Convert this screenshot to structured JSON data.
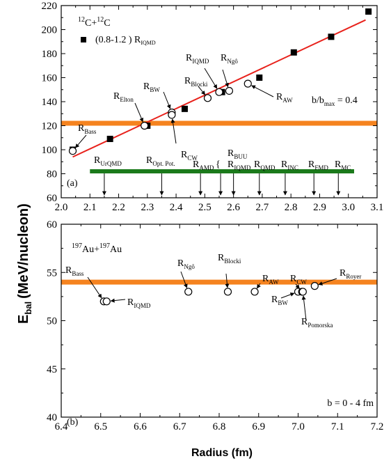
{
  "y_axis_title": "E",
  "y_axis_title_sub": "bal",
  "y_axis_title_unit": "(MeV/nucleon)",
  "x_axis_title": "Radius (fm)",
  "colors": {
    "fit_line": "#e8221c",
    "bass_band": "#f5831f",
    "pot_band": "#1b7a1b",
    "marker": "#000000"
  },
  "chart_data": [
    {
      "type": "scatter",
      "panel_tag": "(a)",
      "system": {
        "a1": "12",
        "e1": "C",
        "plus": "+",
        "a2": "12",
        "e2": "C"
      },
      "legend": {
        "label": "(0.8-1.2 ) R",
        "label_sub": "IQMD",
        "placement": "upper-left"
      },
      "impact_label": "b/b",
      "impact_label_sub": "max",
      "impact_label_value": " = 0.4",
      "xlim": [
        2.0,
        3.1
      ],
      "ylim": [
        60,
        220
      ],
      "xticks": [
        2.0,
        2.1,
        2.2,
        2.3,
        2.4,
        2.5,
        2.6,
        2.7,
        2.8,
        2.9,
        3.0,
        3.1
      ],
      "xtick_labels": [
        "2.0",
        "2.1",
        "2.2",
        "2.3",
        "2.4",
        "2.5",
        "2.6",
        "2.7",
        "2.8",
        "2.9",
        "3.0",
        "3.1"
      ],
      "yticks": [
        60,
        80,
        100,
        120,
        140,
        160,
        180,
        200,
        220
      ],
      "ytick_labels": [
        "60",
        "80",
        "100",
        "120",
        "140",
        "160",
        "180",
        "200",
        "220"
      ],
      "iqmd_squares": [
        [
          2.04,
          100
        ],
        [
          2.17,
          109
        ],
        [
          2.3,
          120
        ],
        [
          2.43,
          134
        ],
        [
          2.56,
          148
        ],
        [
          2.69,
          160
        ],
        [
          2.81,
          181
        ],
        [
          2.94,
          194
        ],
        [
          3.07,
          215
        ]
      ],
      "fit_line": [
        [
          2.04,
          94
        ],
        [
          3.06,
          208
        ]
      ],
      "bass_band_y": 122,
      "potential_band": {
        "y": 82,
        "x": [
          2.1,
          3.02
        ]
      },
      "open_circles": [
        {
          "name": "R",
          "sub": "Bass",
          "x": 2.04,
          "y": 99
        },
        {
          "name": "R",
          "sub": "Elton",
          "x": 2.29,
          "y": 120
        },
        {
          "name": "R",
          "sub": "BW",
          "x": 2.385,
          "y": 131
        },
        {
          "name": "R",
          "sub": "CW",
          "x": 2.385,
          "y": 129
        },
        {
          "name": "R",
          "sub": "Blocki",
          "x": 2.51,
          "y": 143
        },
        {
          "name": "R",
          "sub": "IQMD",
          "x": 2.55,
          "y": 148
        },
        {
          "name": "R",
          "sub": "Ngô",
          "x": 2.585,
          "y": 149
        },
        {
          "name": "R",
          "sub": "AW",
          "x": 2.65,
          "y": 155
        }
      ],
      "potential_radii": [
        {
          "name": "R",
          "sub": "UrQMD",
          "x": 2.15
        },
        {
          "name": "R",
          "sub": "Opt. Pot.",
          "x": 2.35
        },
        {
          "name": "R",
          "sub": "AMD",
          "x": 2.485
        },
        {
          "name": "R",
          "sub": "BUU",
          "x": 2.555
        },
        {
          "name": "R",
          "sub": "IQMD",
          "x": 2.6
        },
        {
          "name": "R",
          "sub": "QMD",
          "x": 2.69
        },
        {
          "name": "R",
          "sub": "INC",
          "x": 2.78
        },
        {
          "name": "R",
          "sub": "FMD",
          "x": 2.88
        },
        {
          "name": "R",
          "sub": "MC",
          "x": 2.965
        }
      ]
    },
    {
      "type": "scatter",
      "panel_tag": "(b)",
      "system": {
        "a1": "197",
        "e1": "Au",
        "plus": "+",
        "a2": "197",
        "e2": "Au"
      },
      "impact_label": "b = 0 - 4 fm",
      "xlim": [
        6.4,
        7.2
      ],
      "ylim": [
        40,
        60
      ],
      "xticks": [
        6.4,
        6.5,
        6.6,
        6.7,
        6.8,
        6.9,
        7.0,
        7.1,
        7.2
      ],
      "xtick_labels": [
        "6.4",
        "6.5",
        "6.6",
        "6.7",
        "6.8",
        "6.9",
        "7.0",
        "7.1",
        "7.2"
      ],
      "yticks": [
        40,
        45,
        50,
        55,
        60
      ],
      "ytick_labels": [
        "40",
        "45",
        "50",
        "55",
        "60"
      ],
      "bass_band_y": 54,
      "open_circles": [
        {
          "name": "R",
          "sub": "Bass",
          "x": 6.508,
          "y": 52
        },
        {
          "name": "R",
          "sub": "IQMD",
          "x": 6.515,
          "y": 52
        },
        {
          "name": "R",
          "sub": "Ngô",
          "x": 6.722,
          "y": 53
        },
        {
          "name": "R",
          "sub": "Blocki",
          "x": 6.822,
          "y": 53
        },
        {
          "name": "R",
          "sub": "AW",
          "x": 6.89,
          "y": 53
        },
        {
          "name": "R",
          "sub": "BW",
          "x": 7.0,
          "y": 53
        },
        {
          "name": "R",
          "sub": "CW",
          "x": 7.01,
          "y": 53
        },
        {
          "name": "R",
          "sub": "Pomorska",
          "x": 7.012,
          "y": 53
        },
        {
          "name": "R",
          "sub": "Royer",
          "x": 7.042,
          "y": 53.6
        }
      ]
    }
  ]
}
